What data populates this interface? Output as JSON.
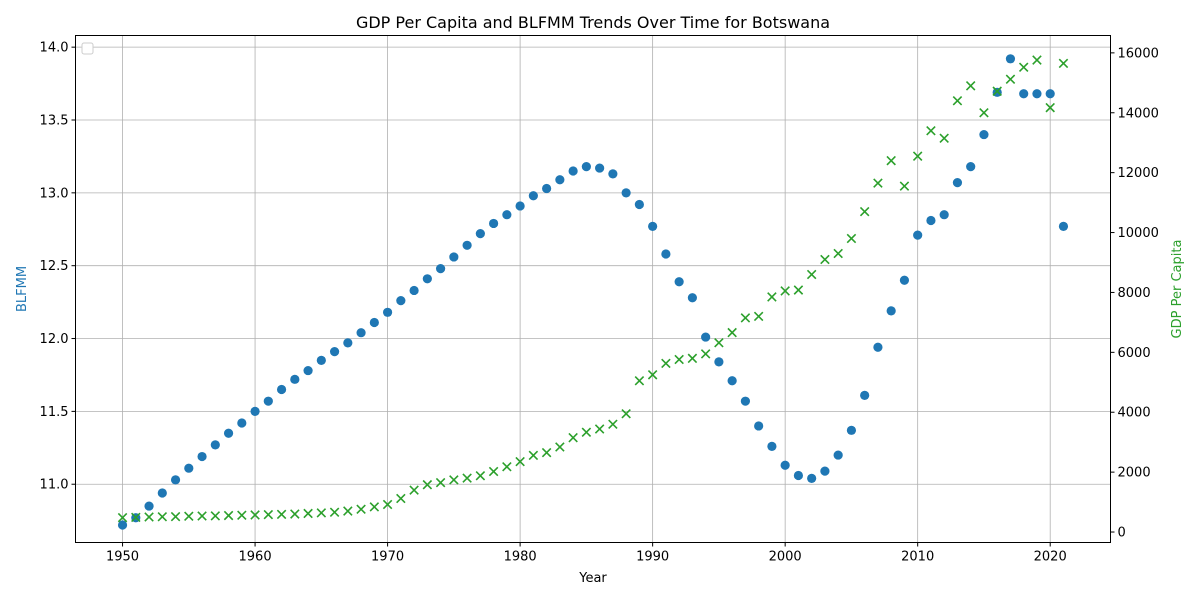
{
  "chart_data": {
    "type": "scatter",
    "title": "GDP Per Capita and BLFMM Trends Over Time for Botswana",
    "xlabel": "Year",
    "ylabel": "BLFMM",
    "y2label": "GDP Per Capita",
    "xlim": [
      1946.45,
      2024.55
    ],
    "ylim": [
      10.6,
      14.08
    ],
    "y2lim": [
      -350,
      16580
    ],
    "xticks": [
      1950,
      1960,
      1970,
      1980,
      1990,
      2000,
      2010,
      2020
    ],
    "yticks": [
      11.0,
      11.5,
      12.0,
      12.5,
      13.0,
      13.5,
      14.0
    ],
    "ytick_labels": [
      "11.0",
      "11.5",
      "12.0",
      "12.5",
      "13.0",
      "13.5",
      "14.0"
    ],
    "y2ticks": [
      0,
      2000,
      4000,
      6000,
      8000,
      10000,
      12000,
      14000,
      16000
    ],
    "grid": true,
    "legend": "top-left, empty",
    "colors": {
      "blfmm": "#1f77b4",
      "gdp": "#2ca02c"
    },
    "series": [
      {
        "axis": "left",
        "marker": "circle",
        "x": [
          1950,
          1951,
          1952,
          1953,
          1954,
          1955,
          1956,
          1957,
          1958,
          1959,
          1960,
          1961,
          1962,
          1963,
          1964,
          1965,
          1966,
          1967,
          1968,
          1969,
          1970,
          1971,
          1972,
          1973,
          1974,
          1975,
          1976,
          1977,
          1978,
          1979,
          1980,
          1981,
          1982,
          1983,
          1984,
          1985,
          1986,
          1987,
          1988,
          1989,
          1990,
          1991,
          1992,
          1993,
          1994,
          1995,
          1996,
          1997,
          1998,
          1999,
          2000,
          2001,
          2002,
          2003,
          2004,
          2005,
          2006,
          2007,
          2008,
          2009,
          2010,
          2011,
          2012,
          2013,
          2014,
          2015,
          2016,
          2017,
          2018,
          2019,
          2020,
          2021
        ],
        "values": [
          10.72,
          10.77,
          10.85,
          10.94,
          11.03,
          11.11,
          11.19,
          11.27,
          11.35,
          11.42,
          11.5,
          11.57,
          11.65,
          11.72,
          11.78,
          11.85,
          11.91,
          11.97,
          12.04,
          12.11,
          12.18,
          12.26,
          12.33,
          12.41,
          12.48,
          12.56,
          12.64,
          12.72,
          12.79,
          12.85,
          12.91,
          12.98,
          13.03,
          13.09,
          13.15,
          13.18,
          13.17,
          13.13,
          13.0,
          12.92,
          12.77,
          12.58,
          12.39,
          12.28,
          12.01,
          11.84,
          11.71,
          11.57,
          11.4,
          11.26,
          11.13,
          11.06,
          11.04,
          11.09,
          11.2,
          11.37,
          11.61,
          11.94,
          12.19,
          12.4,
          12.71,
          12.81,
          12.85,
          13.07,
          13.18,
          13.4,
          13.69,
          13.92,
          13.68,
          13.68,
          13.68,
          12.77
        ]
      },
      {
        "axis": "right",
        "marker": "x",
        "x": [
          1950,
          1951,
          1952,
          1953,
          1954,
          1955,
          1956,
          1957,
          1958,
          1959,
          1960,
          1961,
          1962,
          1963,
          1964,
          1965,
          1966,
          1967,
          1968,
          1969,
          1970,
          1971,
          1972,
          1973,
          1974,
          1975,
          1976,
          1977,
          1978,
          1979,
          1980,
          1981,
          1982,
          1983,
          1984,
          1985,
          1986,
          1987,
          1988,
          1989,
          1990,
          1991,
          1992,
          1993,
          1994,
          1995,
          1996,
          1997,
          1998,
          1999,
          2000,
          2001,
          2002,
          2003,
          2004,
          2005,
          2006,
          2007,
          2008,
          2009,
          2010,
          2011,
          2012,
          2013,
          2014,
          2015,
          2016,
          2017,
          2018,
          2019,
          2020,
          2021
        ],
        "values": [
          480,
          490,
          500,
          510,
          515,
          525,
          535,
          540,
          550,
          560,
          570,
          580,
          590,
          600,
          620,
          640,
          660,
          700,
          760,
          840,
          920,
          1120,
          1400,
          1580,
          1650,
          1740,
          1800,
          1880,
          2020,
          2180,
          2350,
          2560,
          2650,
          2840,
          3150,
          3330,
          3440,
          3600,
          3950,
          5050,
          5250,
          5630,
          5760,
          5800,
          5950,
          6320,
          6660,
          7150,
          7200,
          7850,
          8050,
          8080,
          8600,
          9100,
          9300,
          9800,
          10700,
          11650,
          12400,
          11550,
          12550,
          13400,
          13150,
          14400,
          14900,
          14000,
          14720,
          15120,
          15520,
          15760,
          14170,
          15650
        ]
      }
    ]
  }
}
